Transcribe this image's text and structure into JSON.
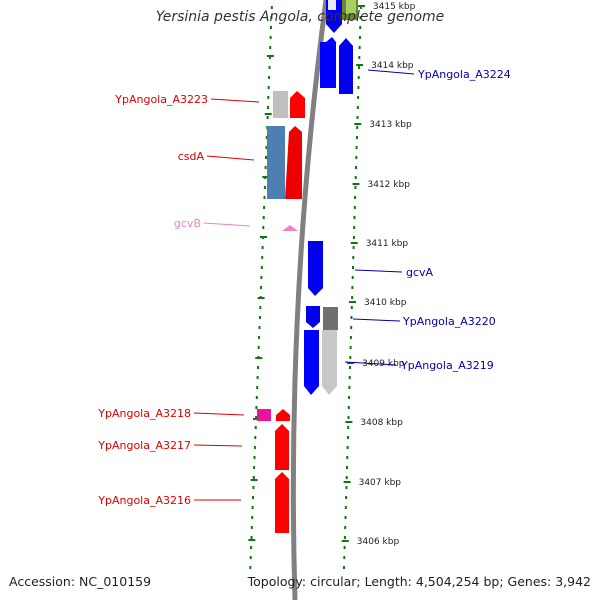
{
  "title": "Yersinia pestis Angola, complete genome",
  "footer": {
    "accession": "Accession: NC_010159",
    "summary": "Topology: circular; Length: 4,504,254 bp; Genes: 3,942"
  },
  "colors": {
    "forward": "#ff0000",
    "reverse": "#0000ff",
    "rna": "#ee82c5",
    "pseudo": "#c0c0c0",
    "ticks": "#117711",
    "backbone": "#808080"
  },
  "ticks": [
    {
      "label": "3415 kbp"
    },
    {
      "label": "3414 kbp"
    },
    {
      "label": "3413 kbp"
    },
    {
      "label": "3412 kbp"
    },
    {
      "label": "3411 kbp"
    },
    {
      "label": "3410 kbp"
    },
    {
      "label": "3409 kbp"
    },
    {
      "label": "3408 kbp"
    },
    {
      "label": "3407 kbp"
    },
    {
      "label": "3406 kbp"
    }
  ],
  "gene_labels": {
    "left": [
      "YpAngola_A3223",
      "csdA",
      "gcvB",
      "YpAngola_A3218",
      "YpAngola_A3217",
      "YpAngola_A3216"
    ],
    "right": [
      "YpAngola_A3224",
      "gcvA",
      "YpAngola_A3220",
      "YpAngola_A3219"
    ]
  }
}
